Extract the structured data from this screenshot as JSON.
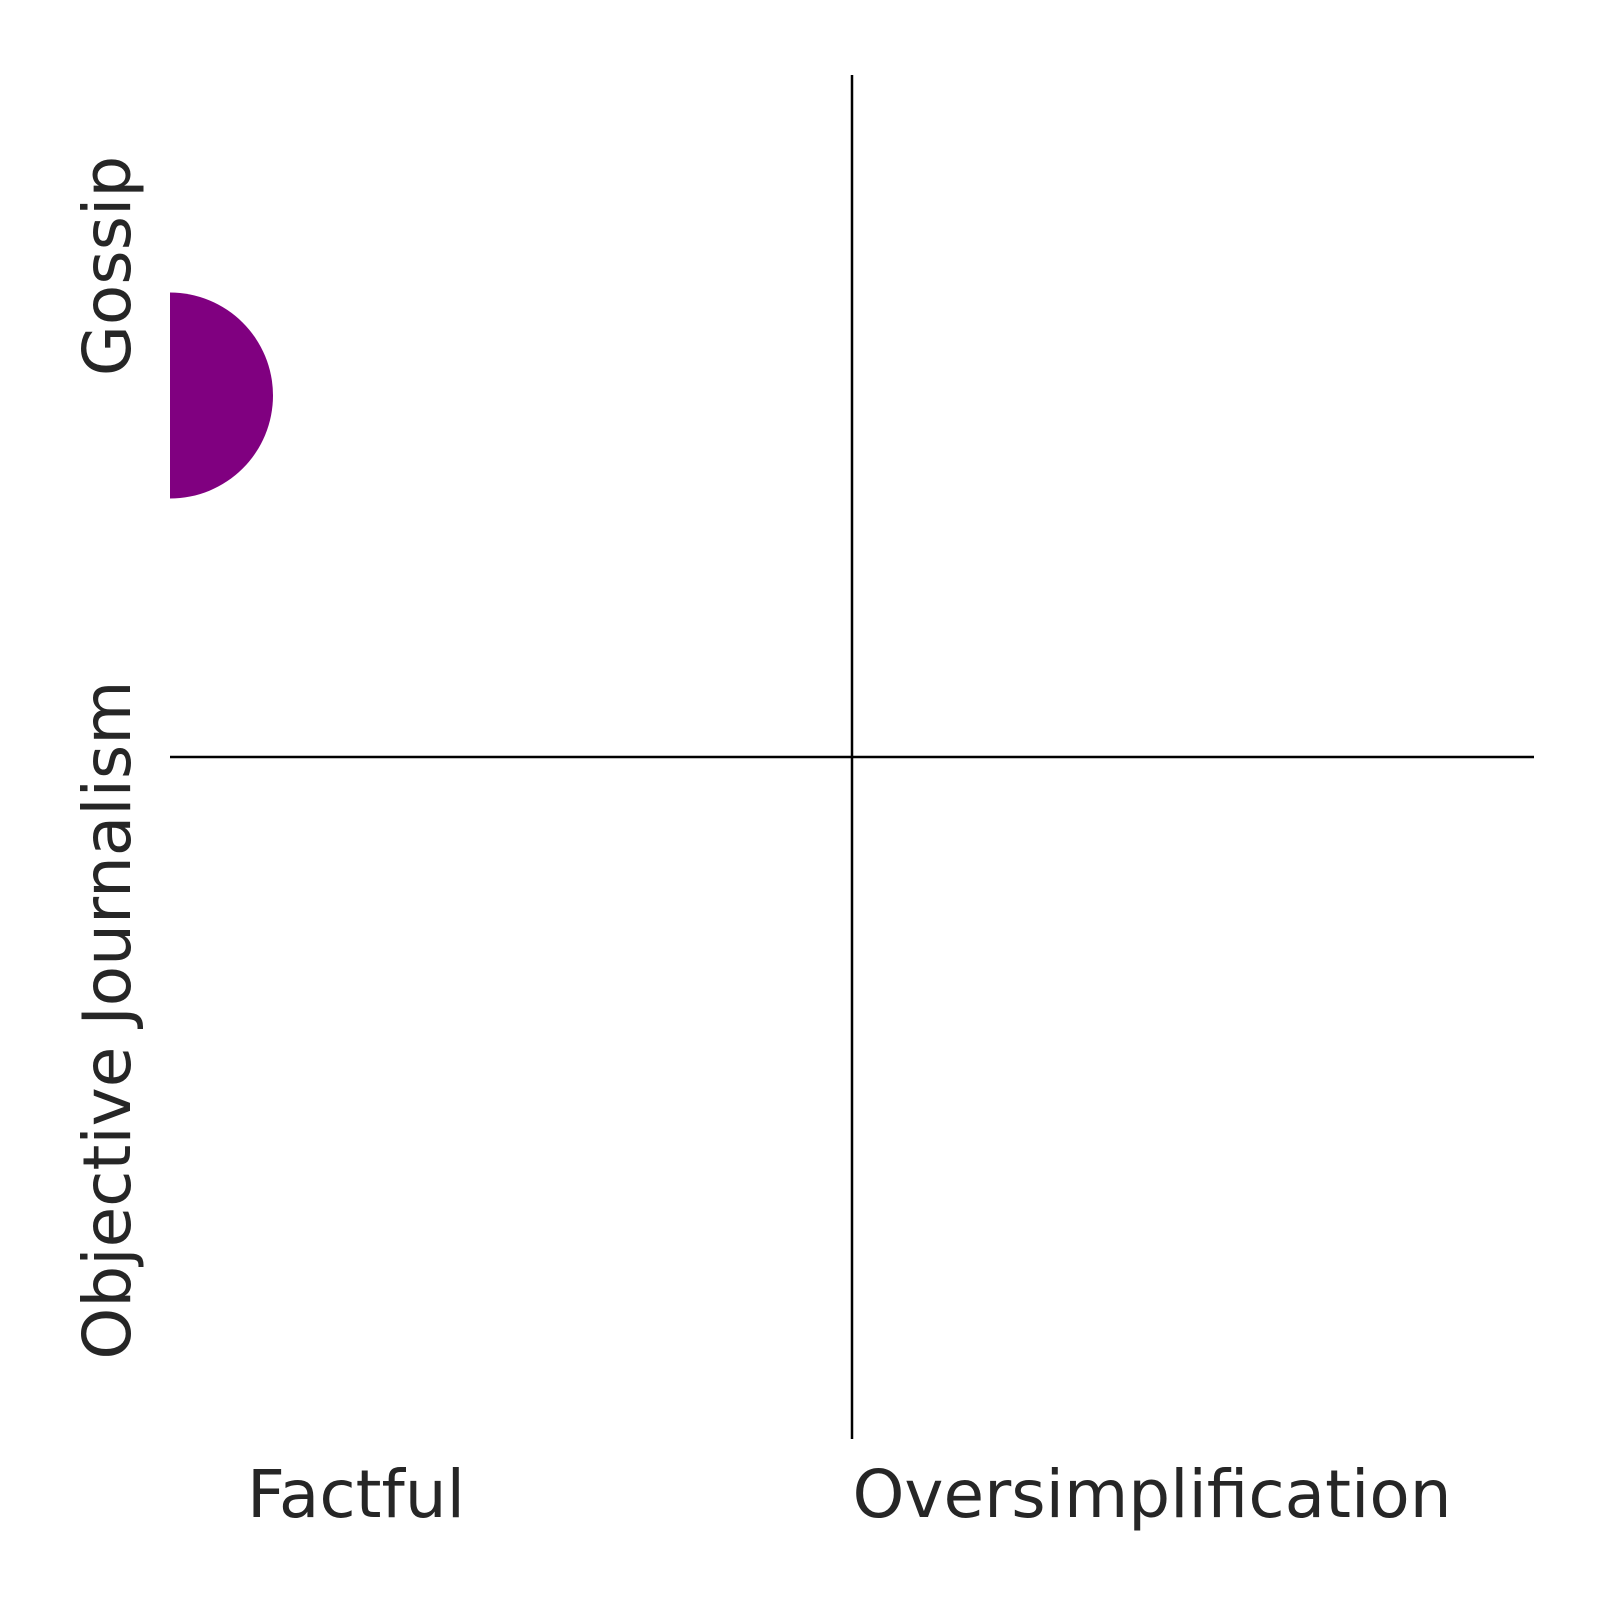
{
  "chart_data": {
    "type": "scatter",
    "title": "",
    "x_labels": [
      "Factful",
      "Oversimplification"
    ],
    "y_labels": [
      "Objective Journalism",
      "Gossip"
    ],
    "xlim": [
      0,
      1
    ],
    "ylim": [
      0,
      1
    ],
    "x_divider": 0.5,
    "y_divider": 0.5,
    "grid": false,
    "legend": "none",
    "points": [
      {
        "x": 0.0,
        "y": 0.765,
        "color": "#800080"
      }
    ]
  }
}
